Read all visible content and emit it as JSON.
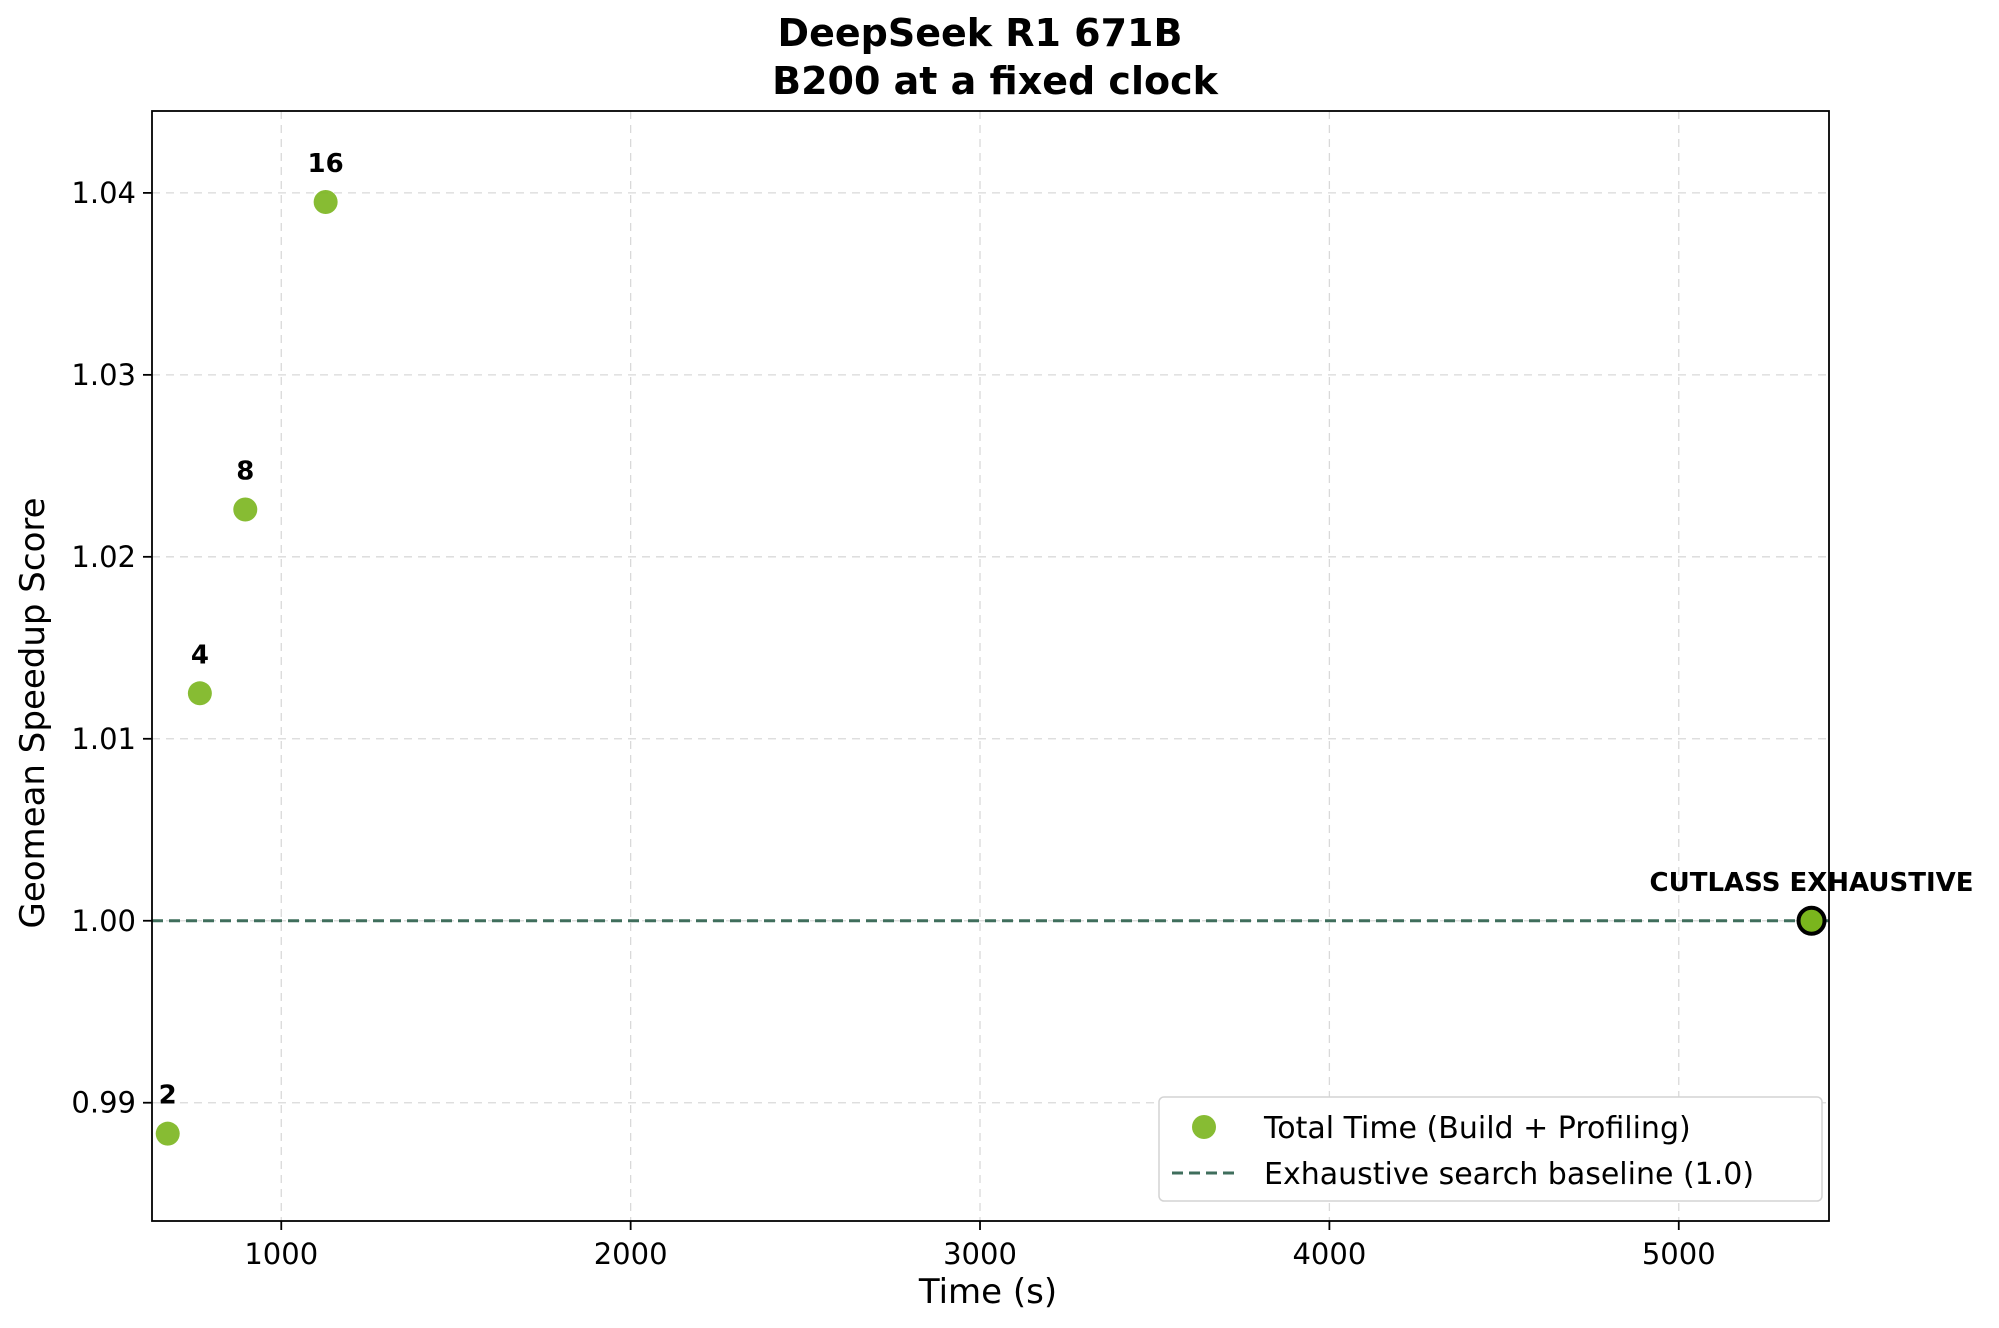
{
  "chart_data": {
    "type": "scatter",
    "title": "DeepSeek R1 671B",
    "subtitle": "B200 at a fixed clock",
    "xlabel": "Time (s)",
    "ylabel": "Geomean Speedup Score",
    "xlim": [
      630,
      5430
    ],
    "ylim": [
      0.9835,
      1.0445
    ],
    "xticks": [
      1000,
      2000,
      3000,
      4000,
      5000
    ],
    "xtick_labels": [
      "1000",
      "2000",
      "3000",
      "4000",
      "5000"
    ],
    "yticks": [
      0.99,
      1.0,
      1.01,
      1.02,
      1.03,
      1.04
    ],
    "ytick_labels": [
      "0.99",
      "1.00",
      "1.01",
      "1.02",
      "1.03",
      "1.04"
    ],
    "grid": true,
    "legend_position": "bottom-right",
    "series": [
      {
        "name": "Total Time (Build + Profiling)",
        "color": "#7ab51d",
        "points": [
          {
            "x": 675,
            "y": 0.9883,
            "label": "2"
          },
          {
            "x": 767,
            "y": 1.0125,
            "label": "4"
          },
          {
            "x": 897,
            "y": 1.0226,
            "label": "8"
          },
          {
            "x": 1127,
            "y": 1.0395,
            "label": "16"
          }
        ]
      },
      {
        "name": "CUTLASS EXHAUSTIVE",
        "color": "#7ab51d",
        "edge_color": "#000000",
        "points": [
          {
            "x": 5380,
            "y": 1.0,
            "label": "CUTLASS EXHAUSTIVE"
          }
        ]
      }
    ],
    "baseline": {
      "name": "Exhaustive search baseline (1.0)",
      "y": 1.0,
      "style": "dashed",
      "color": "#3f6e5c"
    }
  }
}
